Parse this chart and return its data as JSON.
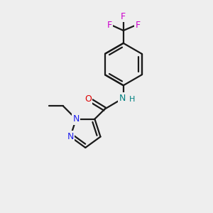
{
  "background_color": "#eeeeee",
  "bond_color": "#1a1a1a",
  "N_color": "#2020ee",
  "O_color": "#dd0000",
  "F_color": "#cc00cc",
  "NH_color": "#008080",
  "figsize": [
    3.0,
    3.0
  ],
  "dpi": 100,
  "xlim": [
    0,
    10
  ],
  "ylim": [
    0,
    10
  ]
}
